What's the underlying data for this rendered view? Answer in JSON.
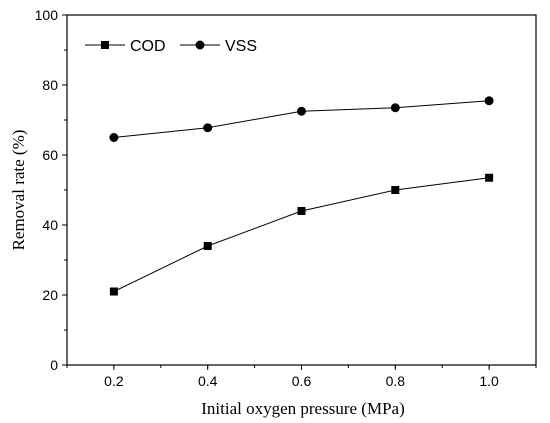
{
  "chart_data": {
    "type": "line",
    "title": "",
    "xlabel": "Initial oxygen pressure (MPa)",
    "ylabel": "Removal rate (%)",
    "x": [
      0.2,
      0.4,
      0.6,
      0.8,
      1.0
    ],
    "xticks": [
      "0.2",
      "0.4",
      "0.6",
      "0.8",
      "1.0"
    ],
    "xlim": [
      0.1,
      1.1
    ],
    "yticks": [
      "0",
      "20",
      "40",
      "60",
      "80",
      "100"
    ],
    "ylim": [
      0,
      100
    ],
    "grid": false,
    "legend_position": "top-left",
    "series": [
      {
        "name": "COD",
        "marker": "square",
        "color": "#000000",
        "values": [
          21,
          34,
          44,
          50,
          53.5
        ]
      },
      {
        "name": "VSS",
        "marker": "circle",
        "color": "#000000",
        "values": [
          65,
          67.8,
          72.5,
          73.5,
          75.5
        ]
      }
    ]
  }
}
